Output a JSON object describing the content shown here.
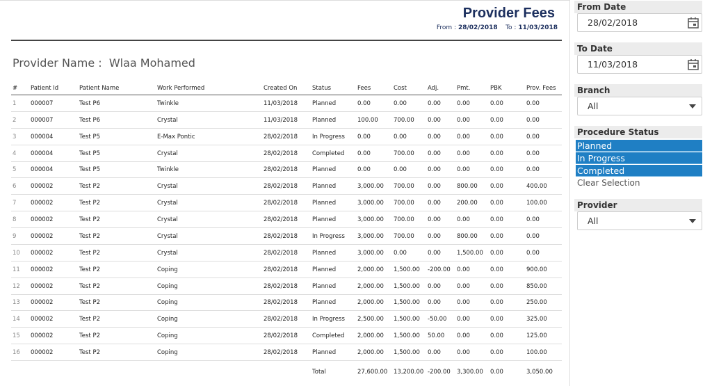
{
  "header": {
    "title": "Provider Fees",
    "from_label": "From :",
    "from": "28/02/2018",
    "to_label": "To :",
    "to": "11/03/2018"
  },
  "provider": {
    "label": "Provider Name :",
    "name": "Wlaa Mohamed"
  },
  "table": {
    "columns": [
      "#",
      "Patient Id",
      "Patient Name",
      "Work Performed",
      "Created On",
      "Status",
      "Fees",
      "Cost",
      "Adj.",
      "Pmt.",
      "PBK",
      "Prov. Fees"
    ],
    "rows": [
      [
        "1",
        "000007",
        "Test P6",
        "Twinkle",
        "11/03/2018",
        "Planned",
        "0.00",
        "0.00",
        "0.00",
        "0.00",
        "0.00",
        "0.00"
      ],
      [
        "2",
        "000007",
        "Test P6",
        "Crystal",
        "11/03/2018",
        "Planned",
        "100.00",
        "700.00",
        "0.00",
        "0.00",
        "0.00",
        "0.00"
      ],
      [
        "3",
        "000004",
        "Test P5",
        "E-Max Pontic",
        "28/02/2018",
        "In Progress",
        "0.00",
        "0.00",
        "0.00",
        "0.00",
        "0.00",
        "0.00"
      ],
      [
        "4",
        "000004",
        "Test P5",
        "Crystal",
        "28/02/2018",
        "Completed",
        "0.00",
        "700.00",
        "0.00",
        "0.00",
        "0.00",
        "0.00"
      ],
      [
        "5",
        "000004",
        "Test P5",
        "Twinkle",
        "28/02/2018",
        "Planned",
        "0.00",
        "0.00",
        "0.00",
        "0.00",
        "0.00",
        "0.00"
      ],
      [
        "6",
        "000002",
        "Test P2",
        "Crystal",
        "28/02/2018",
        "Planned",
        "3,000.00",
        "700.00",
        "0.00",
        "800.00",
        "0.00",
        "400.00"
      ],
      [
        "7",
        "000002",
        "Test P2",
        "Crystal",
        "28/02/2018",
        "Planned",
        "3,000.00",
        "700.00",
        "0.00",
        "200.00",
        "0.00",
        "100.00"
      ],
      [
        "8",
        "000002",
        "Test P2",
        "Crystal",
        "28/02/2018",
        "Planned",
        "3,000.00",
        "700.00",
        "0.00",
        "0.00",
        "0.00",
        "0.00"
      ],
      [
        "9",
        "000002",
        "Test P2",
        "Crystal",
        "28/02/2018",
        "In Progress",
        "3,000.00",
        "700.00",
        "0.00",
        "800.00",
        "0.00",
        "0.00"
      ],
      [
        "10",
        "000002",
        "Test P2",
        "Crystal",
        "28/02/2018",
        "Planned",
        "3,000.00",
        "0.00",
        "0.00",
        "1,500.00",
        "0.00",
        "0.00"
      ],
      [
        "11",
        "000002",
        "Test P2",
        "Coping",
        "28/02/2018",
        "Planned",
        "2,000.00",
        "1,500.00",
        "-200.00",
        "0.00",
        "0.00",
        "900.00"
      ],
      [
        "12",
        "000002",
        "Test P2",
        "Coping",
        "28/02/2018",
        "Planned",
        "2,000.00",
        "1,500.00",
        "0.00",
        "0.00",
        "0.00",
        "850.00"
      ],
      [
        "13",
        "000002",
        "Test P2",
        "Coping",
        "28/02/2018",
        "Planned",
        "2,000.00",
        "1,500.00",
        "0.00",
        "0.00",
        "0.00",
        "250.00"
      ],
      [
        "14",
        "000002",
        "Test P2",
        "Coping",
        "28/02/2018",
        "In Progress",
        "2,500.00",
        "1,500.00",
        "-50.00",
        "0.00",
        "0.00",
        "325.00"
      ],
      [
        "15",
        "000002",
        "Test P2",
        "Coping",
        "28/02/2018",
        "Completed",
        "2,000.00",
        "1,500.00",
        "50.00",
        "0.00",
        "0.00",
        "125.00"
      ],
      [
        "16",
        "000002",
        "Test P2",
        "Coping",
        "28/02/2018",
        "Planned",
        "2,000.00",
        "1,500.00",
        "0.00",
        "0.00",
        "0.00",
        "100.00"
      ]
    ],
    "total_label": "Total",
    "totals": [
      "27,600.00",
      "13,200.00",
      "-200.00",
      "3,300.00",
      "0.00",
      "3,050.00"
    ]
  },
  "filters": {
    "from_date": {
      "label": "From Date",
      "value": "28/02/2018"
    },
    "to_date": {
      "label": "To Date",
      "value": "11/03/2018"
    },
    "branch": {
      "label": "Branch",
      "value": "All"
    },
    "procedure_status": {
      "label": "Procedure Status",
      "options": [
        "Planned",
        "In Progress",
        "Completed"
      ],
      "clear": "Clear Selection"
    },
    "provider": {
      "label": "Provider",
      "value": "All"
    }
  }
}
